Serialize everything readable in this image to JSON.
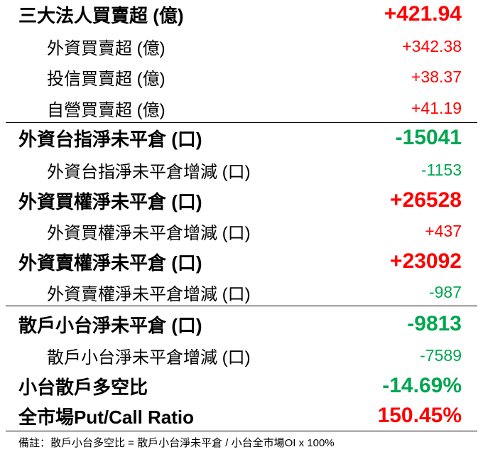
{
  "rows": [
    {
      "label": "三大法人買賣超 (億)",
      "value": "+421.94",
      "type": "main",
      "sign": "pos"
    },
    {
      "label": "外資買賣超 (億)",
      "value": "+342.38",
      "type": "sub",
      "sign": "pos"
    },
    {
      "label": "投信買賣超 (億)",
      "value": "+38.37",
      "type": "sub",
      "sign": "pos"
    },
    {
      "label": "自營買賣超 (億)",
      "value": "+41.19",
      "type": "sub",
      "sign": "pos"
    },
    {
      "label": "外資台指淨未平倉 (口)",
      "value": "-15041",
      "type": "main",
      "sign": "neg"
    },
    {
      "label": "外資台指淨未平倉增減 (口)",
      "value": "-1153",
      "type": "sub",
      "sign": "neg"
    },
    {
      "label": "外資買權淨未平倉 (口)",
      "value": "+26528",
      "type": "main",
      "sign": "pos"
    },
    {
      "label": "外資買權淨未平倉增減 (口)",
      "value": "+437",
      "type": "sub",
      "sign": "pos"
    },
    {
      "label": "外資賣權淨未平倉 (口)",
      "value": "+23092",
      "type": "main",
      "sign": "pos"
    },
    {
      "label": "外資賣權淨未平倉增減 (口)",
      "value": "-987",
      "type": "sub",
      "sign": "neg"
    },
    {
      "label": "散戶小台淨未平倉 (口)",
      "value": "-9813",
      "type": "main",
      "sign": "neg"
    },
    {
      "label": "散戶小台淨未平倉增減 (口)",
      "value": "-7589",
      "type": "sub",
      "sign": "neg"
    },
    {
      "label": "小台散戶多空比",
      "value": "-14.69%",
      "type": "main",
      "sign": "neg"
    },
    {
      "label": "全市場Put/Call Ratio",
      "value": "150.45%",
      "type": "main",
      "sign": "pos"
    }
  ],
  "note": "備註：散戶小台多空比 = 散戶小台淨未平倉 / 小台全市場OI x 100%",
  "colors": {
    "positive": "#ff0000",
    "negative": "#00a650"
  }
}
